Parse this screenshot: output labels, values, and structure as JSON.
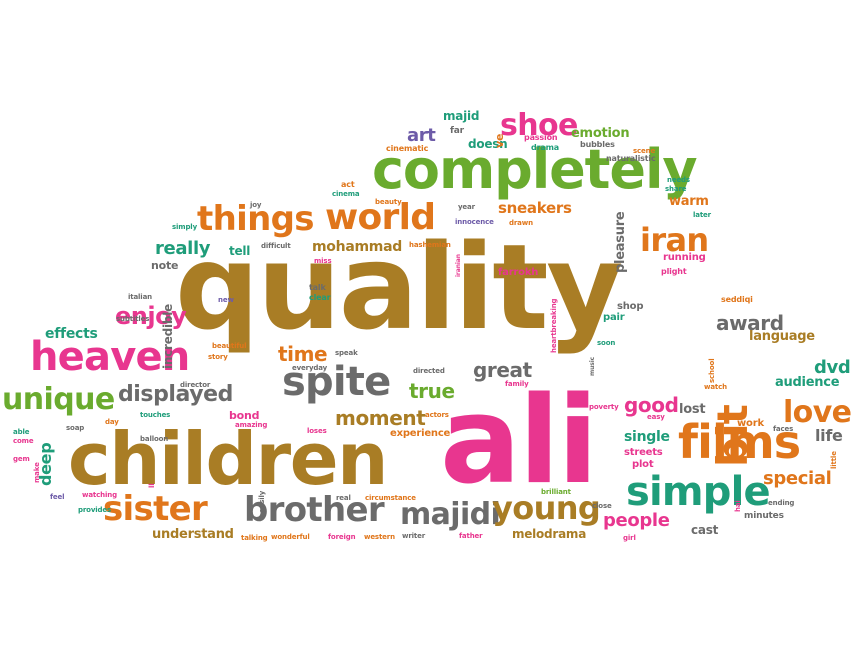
{
  "colors": {
    "brown": "#a97d25",
    "pink": "#e8368f",
    "orange": "#e0761b",
    "green": "#6aab2e",
    "teal": "#1f9d7a",
    "gray": "#6b6b6b",
    "purple": "#6d5ba8"
  },
  "words": [
    {
      "text": "quality",
      "color": "brown"
    },
    {
      "text": "ali",
      "color": "pink"
    },
    {
      "text": "children",
      "color": "brown"
    },
    {
      "text": "completely",
      "color": "green"
    },
    {
      "text": "heaven",
      "color": "pink"
    },
    {
      "text": "films",
      "color": "orange"
    },
    {
      "text": "simple",
      "color": "teal"
    },
    {
      "text": "spite",
      "color": "gray"
    },
    {
      "text": "brother",
      "color": "gray"
    },
    {
      "text": "world",
      "color": "orange"
    },
    {
      "text": "things",
      "color": "orange"
    },
    {
      "text": "unique",
      "color": "green"
    },
    {
      "text": "sister",
      "color": "orange"
    },
    {
      "text": "majidi",
      "color": "gray"
    },
    {
      "text": "young",
      "color": "brown"
    },
    {
      "text": "bit",
      "color": "orange"
    },
    {
      "text": "iran",
      "color": "orange"
    },
    {
      "text": "love",
      "color": "orange"
    },
    {
      "text": "shoe",
      "color": "pink"
    },
    {
      "text": "displayed",
      "color": "gray"
    },
    {
      "text": "enjoy",
      "color": "pink"
    },
    {
      "text": "award",
      "color": "gray"
    },
    {
      "text": "moment",
      "color": "brown"
    },
    {
      "text": "great",
      "color": "gray"
    },
    {
      "text": "true",
      "color": "green"
    },
    {
      "text": "good",
      "color": "pink"
    },
    {
      "text": "people",
      "color": "pink"
    },
    {
      "text": "dvd",
      "color": "teal"
    },
    {
      "text": "time",
      "color": "orange"
    },
    {
      "text": "really",
      "color": "teal"
    },
    {
      "text": "special",
      "color": "orange"
    },
    {
      "text": "art",
      "color": "purple"
    },
    {
      "text": "sneakers",
      "color": "orange"
    },
    {
      "text": "mohammad",
      "color": "brown"
    },
    {
      "text": "effects",
      "color": "teal"
    },
    {
      "text": "deep",
      "color": "teal"
    },
    {
      "text": "single",
      "color": "teal"
    },
    {
      "text": "life",
      "color": "gray"
    },
    {
      "text": "audience",
      "color": "teal"
    },
    {
      "text": "language",
      "color": "brown"
    },
    {
      "text": "understand",
      "color": "brown"
    },
    {
      "text": "melodrama",
      "color": "brown"
    },
    {
      "text": "emotion",
      "color": "green"
    },
    {
      "text": "doesn",
      "color": "teal"
    },
    {
      "text": "majid",
      "color": "teal"
    },
    {
      "text": "pleasure",
      "color": "gray"
    },
    {
      "text": "lost",
      "color": "gray"
    },
    {
      "text": "cast",
      "color": "gray"
    },
    {
      "text": "warm",
      "color": "orange"
    },
    {
      "text": "running",
      "color": "pink"
    },
    {
      "text": "farrokh",
      "color": "pink"
    },
    {
      "text": "tell",
      "color": "teal"
    },
    {
      "text": "note",
      "color": "gray"
    },
    {
      "text": "incredible",
      "color": "gray"
    },
    {
      "text": "experience",
      "color": "orange"
    },
    {
      "text": "minutes",
      "color": "gray"
    },
    {
      "text": "work",
      "color": "orange"
    },
    {
      "text": "bond",
      "color": "pink"
    },
    {
      "text": "pair",
      "color": "teal"
    },
    {
      "text": "shop",
      "color": "gray"
    },
    {
      "text": "streets",
      "color": "pink"
    },
    {
      "text": "plot",
      "color": "pink"
    },
    {
      "text": "ve",
      "color": "orange"
    },
    {
      "text": "far",
      "color": "gray"
    },
    {
      "text": "passion",
      "color": "pink"
    },
    {
      "text": "drama",
      "color": "teal"
    },
    {
      "text": "bubbles",
      "color": "gray"
    },
    {
      "text": "scene",
      "color": "orange"
    },
    {
      "text": "cinematic",
      "color": "orange"
    },
    {
      "text": "naturalistic",
      "color": "gray"
    },
    {
      "text": "needs",
      "color": "teal"
    },
    {
      "text": "share",
      "color": "teal"
    },
    {
      "text": "later",
      "color": "teal"
    },
    {
      "text": "plight",
      "color": "pink"
    },
    {
      "text": "act",
      "color": "orange"
    },
    {
      "text": "cinema",
      "color": "teal"
    },
    {
      "text": "beauty",
      "color": "orange"
    },
    {
      "text": "year",
      "color": "gray"
    },
    {
      "text": "innocence",
      "color": "purple"
    },
    {
      "text": "drawn",
      "color": "orange"
    },
    {
      "text": "joy",
      "color": "gray"
    },
    {
      "text": "simply",
      "color": "teal"
    },
    {
      "text": "difficult",
      "color": "gray"
    },
    {
      "text": "hashemian",
      "color": "orange"
    },
    {
      "text": "miss",
      "color": "pink"
    },
    {
      "text": "iranian",
      "color": "pink"
    },
    {
      "text": "talk",
      "color": "gray"
    },
    {
      "text": "clear",
      "color": "teal"
    },
    {
      "text": "italian",
      "color": "gray"
    },
    {
      "text": "new",
      "color": "purple"
    },
    {
      "text": "subtitles",
      "color": "gray"
    },
    {
      "text": "beautiful",
      "color": "orange"
    },
    {
      "text": "story",
      "color": "orange"
    },
    {
      "text": "speak",
      "color": "gray"
    },
    {
      "text": "everyday",
      "color": "gray"
    },
    {
      "text": "directed",
      "color": "gray"
    },
    {
      "text": "family",
      "color": "pink"
    },
    {
      "text": "heartbreaking",
      "color": "pink"
    },
    {
      "text": "music",
      "color": "gray"
    },
    {
      "text": "soon",
      "color": "teal"
    },
    {
      "text": "seddiqi",
      "color": "orange"
    },
    {
      "text": "school",
      "color": "orange"
    },
    {
      "text": "watch",
      "color": "orange"
    },
    {
      "text": "poverty",
      "color": "pink"
    },
    {
      "text": "easy",
      "color": "pink"
    },
    {
      "text": "faces",
      "color": "gray"
    },
    {
      "text": "little",
      "color": "orange"
    },
    {
      "text": "director",
      "color": "gray"
    },
    {
      "text": "day",
      "color": "orange"
    },
    {
      "text": "touches",
      "color": "teal"
    },
    {
      "text": "amazing",
      "color": "pink"
    },
    {
      "text": "loses",
      "color": "pink"
    },
    {
      "text": "actors",
      "color": "orange"
    },
    {
      "text": "able",
      "color": "teal"
    },
    {
      "text": "come",
      "color": "pink"
    },
    {
      "text": "gem",
      "color": "pink"
    },
    {
      "text": "soap",
      "color": "gray"
    },
    {
      "text": "balloon",
      "color": "gray"
    },
    {
      "text": "ll",
      "color": "pink"
    },
    {
      "text": "make",
      "color": "pink"
    },
    {
      "text": "feel",
      "color": "purple"
    },
    {
      "text": "watching",
      "color": "pink"
    },
    {
      "text": "provides",
      "color": "teal"
    },
    {
      "text": "easily",
      "color": "gray"
    },
    {
      "text": "real",
      "color": "gray"
    },
    {
      "text": "circumstance",
      "color": "orange"
    },
    {
      "text": "brilliant",
      "color": "green"
    },
    {
      "text": "close",
      "color": "gray"
    },
    {
      "text": "ending",
      "color": "gray"
    },
    {
      "text": "talking",
      "color": "orange"
    },
    {
      "text": "wonderful",
      "color": "orange"
    },
    {
      "text": "foreign",
      "color": "pink"
    },
    {
      "text": "western",
      "color": "orange"
    },
    {
      "text": "writer",
      "color": "gray"
    },
    {
      "text": "father",
      "color": "pink"
    },
    {
      "text": "girl",
      "color": "pink"
    },
    {
      "text": "hai",
      "color": "pink"
    }
  ]
}
